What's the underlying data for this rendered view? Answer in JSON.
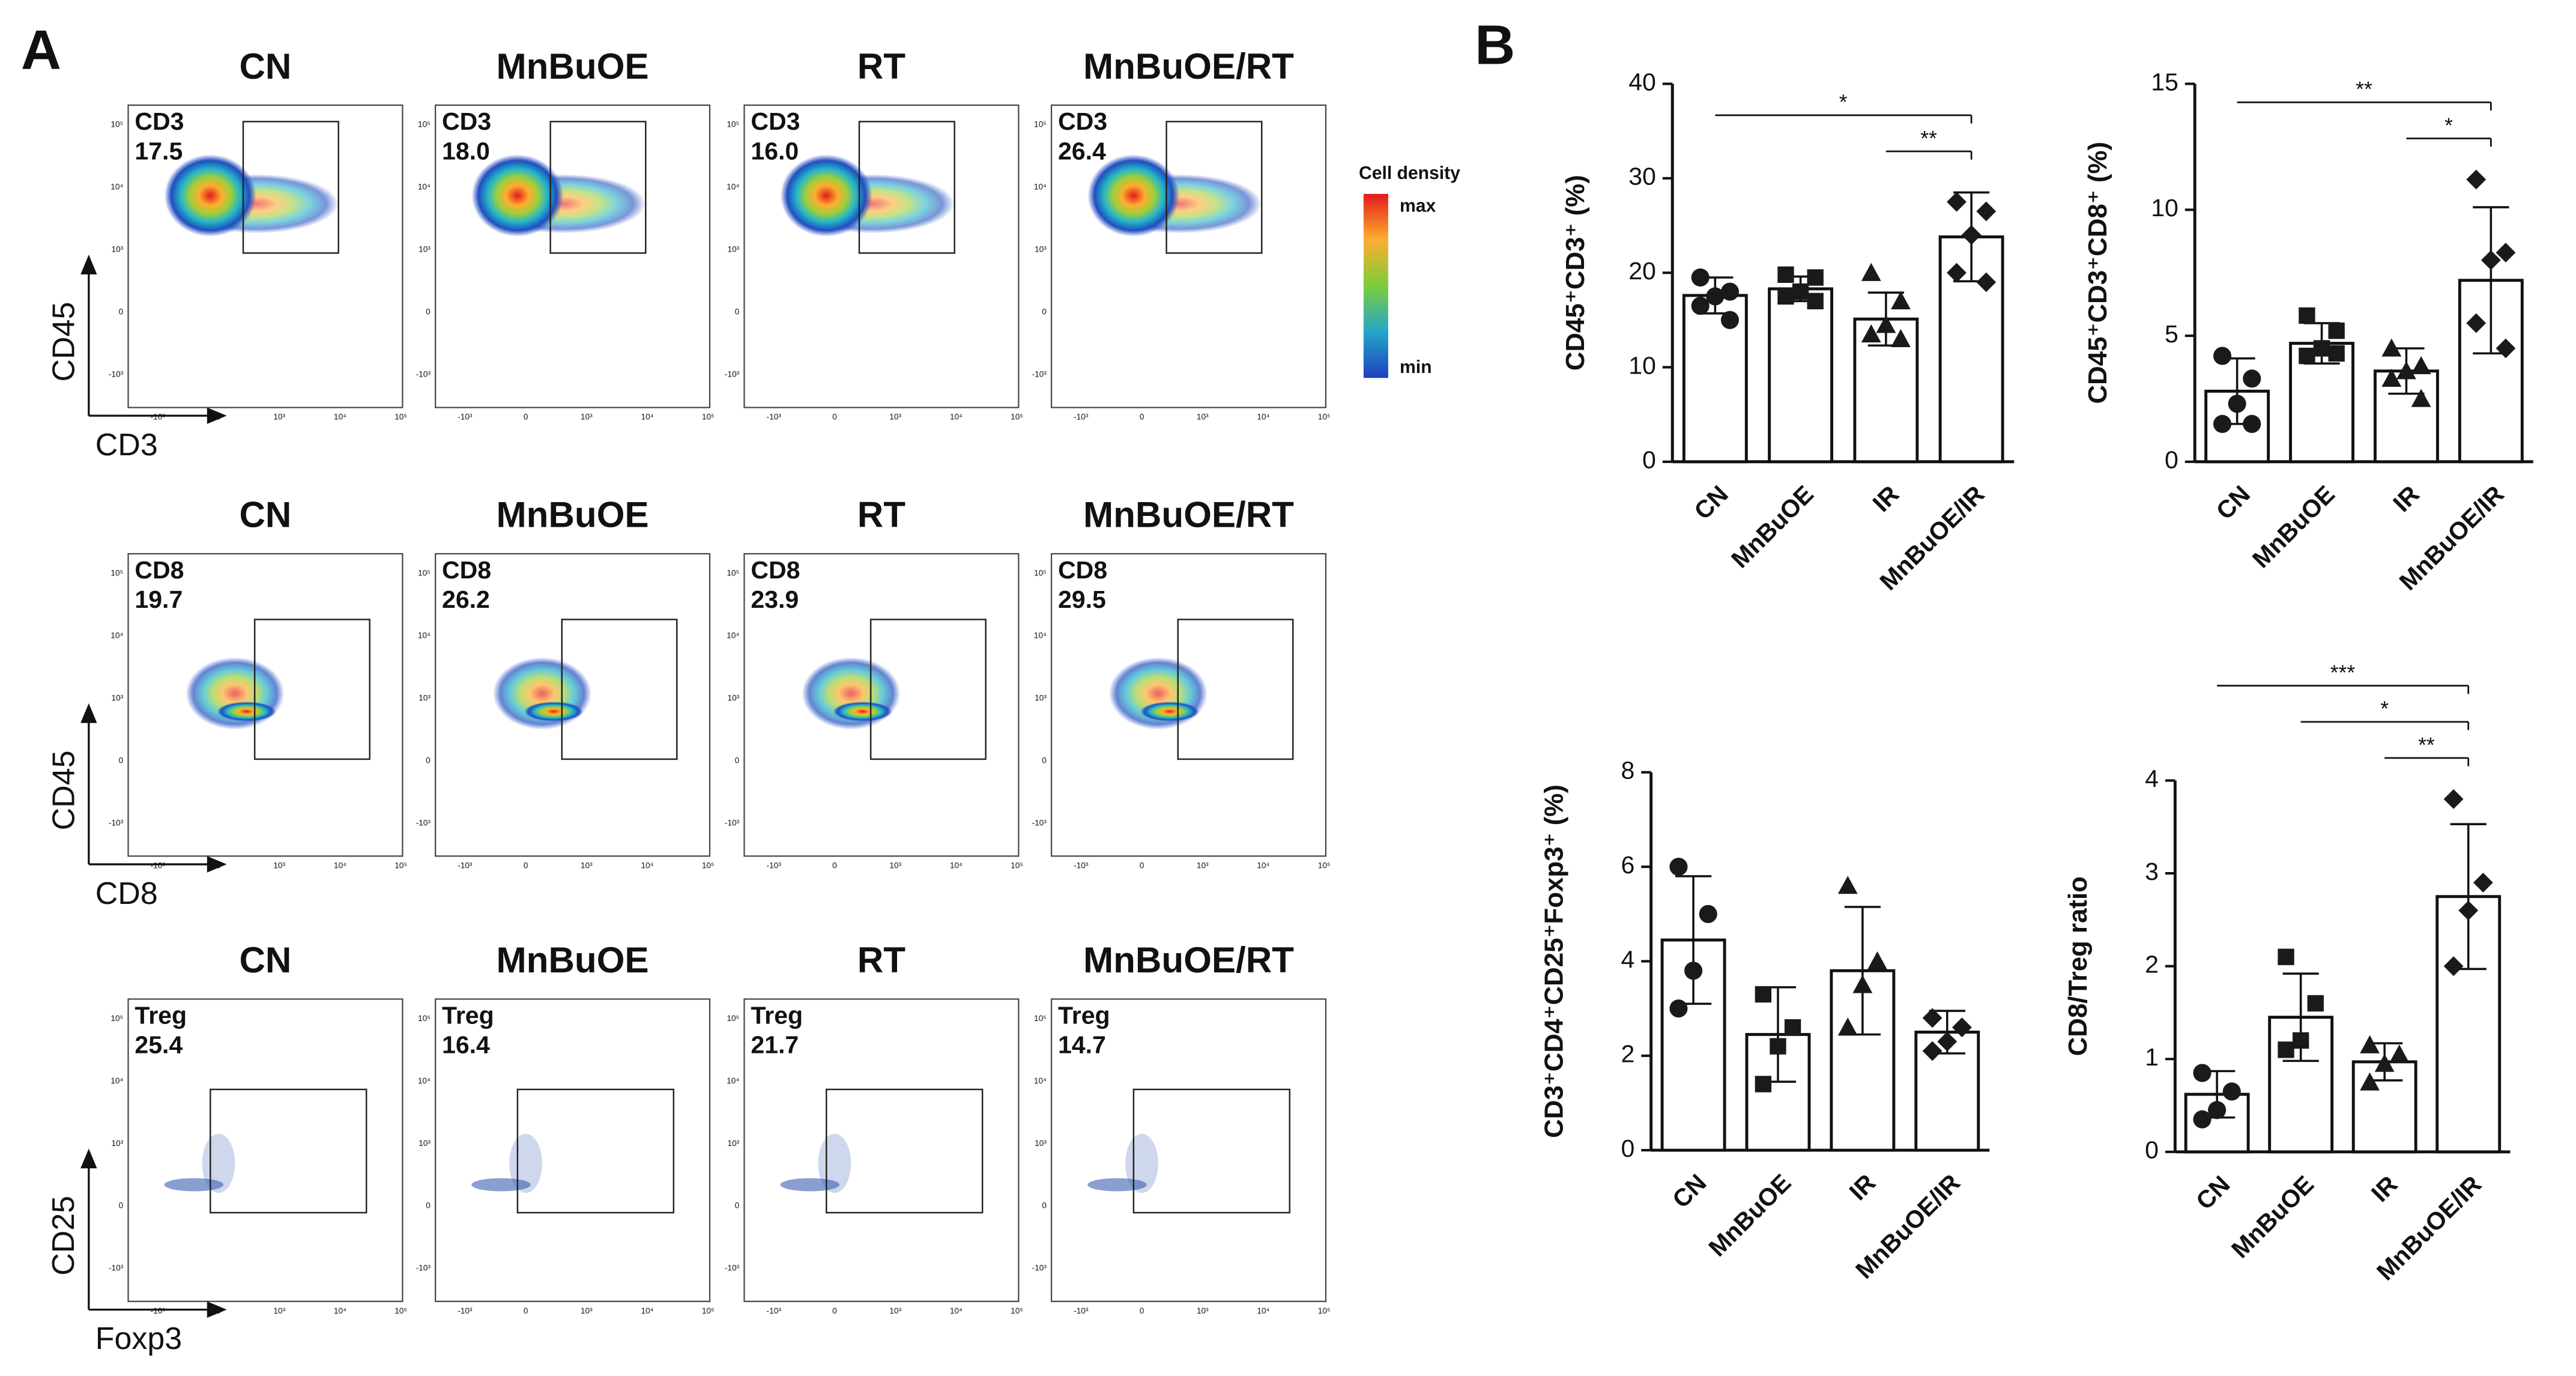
{
  "panel_labels": [
    "A",
    "B"
  ],
  "legend": {
    "title": "Cell density",
    "max": "max",
    "min": "min"
  },
  "flow": {
    "groups": [
      "CN",
      "MnBuOE",
      "RT",
      "MnBuOE/RT"
    ],
    "ticks": [
      "-10³",
      "0",
      "10³",
      "10⁴",
      "10⁵"
    ],
    "rows": [
      {
        "xlabel": "CD3",
        "ylabel": "CD45",
        "gate": "CD3",
        "gate_values": [
          "17.5",
          "18.0",
          "16.0",
          "26.4"
        ]
      },
      {
        "xlabel": "CD8",
        "ylabel": "CD45",
        "gate": "CD8",
        "gate_values": [
          "19.7",
          "26.2",
          "23.9",
          "29.5"
        ]
      },
      {
        "xlabel": "Foxp3",
        "ylabel": "CD25",
        "gate": "Treg",
        "gate_values": [
          "25.4",
          "16.4",
          "21.7",
          "14.7"
        ]
      }
    ]
  },
  "chart_data": [
    {
      "type": "bar",
      "ylabel": "CD45⁺CD3⁺ (%)",
      "categories": [
        "CN",
        "MnBuOE",
        "IR",
        "MnBuOE/IR"
      ],
      "values": [
        17.6,
        18.3,
        15.1,
        23.8
      ],
      "errors": [
        1.9,
        1.3,
        2.8,
        4.7
      ],
      "points": [
        [
          19.5,
          18.0,
          17.5,
          16.5,
          15.0
        ],
        [
          19.8,
          19.5,
          18.0,
          17.5,
          17.0
        ],
        [
          20.0,
          17.0,
          14.5,
          13.5,
          13.0
        ],
        [
          27.5,
          26.5,
          24.0,
          20.0,
          19.0
        ]
      ],
      "ylim": [
        0,
        40
      ],
      "yticks": [
        0,
        10,
        20,
        30,
        40
      ],
      "color": "#ffffff",
      "comparisons": [
        {
          "between": [
            "CN",
            "MnBuOE/IR"
          ],
          "label": "*"
        },
        {
          "between": [
            "IR",
            "MnBuOE/IR"
          ],
          "label": "**"
        }
      ]
    },
    {
      "type": "bar",
      "ylabel": "CD45⁺CD3⁺CD8⁺ (%)",
      "categories": [
        "CN",
        "MnBuOE",
        "IR",
        "MnBuOE/IR"
      ],
      "values": [
        2.8,
        4.7,
        3.6,
        7.2
      ],
      "errors": [
        1.3,
        0.8,
        0.9,
        2.9
      ],
      "points": [
        [
          4.2,
          3.3,
          2.3,
          1.5,
          1.5
        ],
        [
          5.8,
          5.2,
          4.5,
          4.2,
          4.3
        ],
        [
          4.5,
          3.8,
          3.6,
          3.3,
          2.5
        ],
        [
          11.2,
          8.3,
          8.0,
          5.5,
          4.5
        ]
      ],
      "ylim": [
        0,
        15
      ],
      "yticks": [
        0,
        5,
        10,
        15
      ],
      "color": "#ffffff",
      "comparisons": [
        {
          "between": [
            "CN",
            "MnBuOE/IR"
          ],
          "label": "**"
        },
        {
          "between": [
            "IR",
            "MnBuOE/IR"
          ],
          "label": "*"
        }
      ]
    },
    {
      "type": "bar",
      "ylabel": "CD3⁺CD4⁺CD25⁺Foxp3⁺ (%)",
      "categories": [
        "CN",
        "MnBuOE",
        "IR",
        "MnBuOE/IR"
      ],
      "values": [
        4.45,
        2.45,
        3.8,
        2.5
      ],
      "errors": [
        1.35,
        1.0,
        1.35,
        0.45
      ],
      "points": [
        [
          6.0,
          5.0,
          3.8,
          3.0
        ],
        [
          3.3,
          2.6,
          2.2,
          1.4
        ],
        [
          5.6,
          4.0,
          3.5,
          2.6
        ],
        [
          2.8,
          2.6,
          2.3,
          2.1
        ]
      ],
      "ylim": [
        0,
        8
      ],
      "yticks": [
        0,
        2,
        4,
        6,
        8
      ],
      "color": "#ffffff",
      "comparisons": []
    },
    {
      "type": "bar",
      "ylabel": "CD8/Treg ratio",
      "categories": [
        "CN",
        "MnBuOE",
        "IR",
        "MnBuOE/IR"
      ],
      "values": [
        0.62,
        1.45,
        0.97,
        2.75
      ],
      "errors": [
        0.25,
        0.47,
        0.2,
        0.78
      ],
      "points": [
        [
          0.85,
          0.65,
          0.45,
          0.35
        ],
        [
          2.1,
          1.6,
          1.2,
          1.1
        ],
        [
          1.15,
          1.05,
          0.95,
          0.75
        ],
        [
          3.8,
          2.9,
          2.6,
          2.0
        ]
      ],
      "ylim": [
        0,
        4
      ],
      "yticks": [
        0,
        1,
        2,
        3,
        4
      ],
      "color": "#ffffff",
      "comparisons": [
        {
          "between": [
            "CN",
            "MnBuOE/IR"
          ],
          "label": "***"
        },
        {
          "between": [
            "MnBuOE",
            "MnBuOE/IR"
          ],
          "label": "*"
        },
        {
          "between": [
            "IR",
            "MnBuOE/IR"
          ],
          "label": "**"
        }
      ]
    }
  ]
}
